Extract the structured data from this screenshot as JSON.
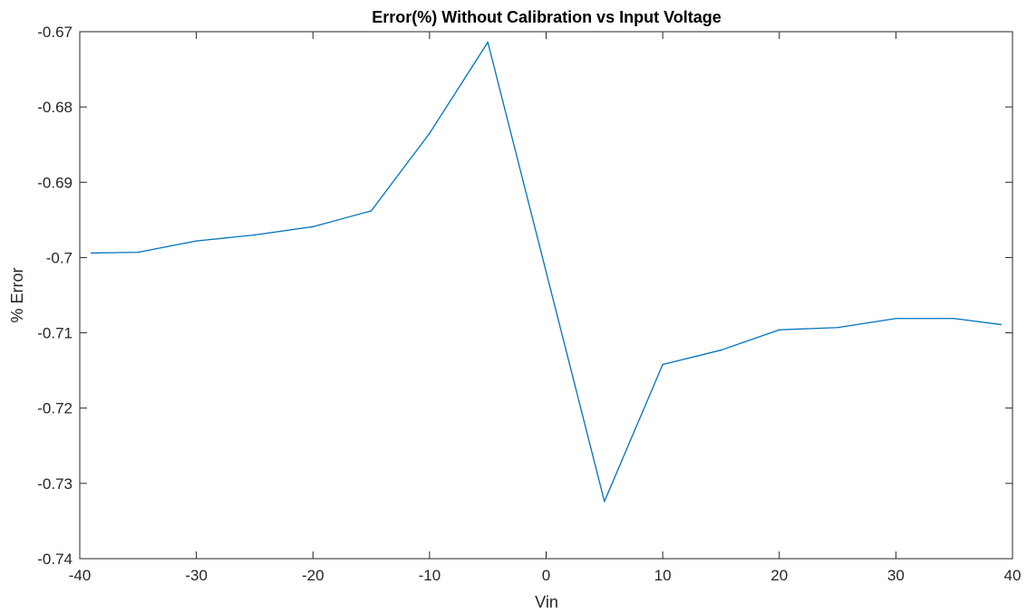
{
  "chart_data": {
    "type": "line",
    "title": "Error(%) Without Calibration vs Input Voltage",
    "xlabel": "Vin",
    "ylabel": "% Error",
    "xlim": [
      -40,
      40
    ],
    "ylim": [
      -0.74,
      -0.67
    ],
    "xticks": [
      -40,
      -30,
      -20,
      -10,
      0,
      10,
      20,
      30,
      40
    ],
    "xtick_labels": [
      "-40",
      "-30",
      "-20",
      "-10",
      "0",
      "10",
      "20",
      "30",
      "40"
    ],
    "yticks": [
      -0.74,
      -0.73,
      -0.72,
      -0.71,
      -0.7,
      -0.69,
      -0.68,
      -0.67
    ],
    "ytick_labels": [
      "-0.74",
      "-0.73",
      "-0.72",
      "-0.71",
      "-0.7",
      "-0.69",
      "-0.68",
      "-0.67"
    ],
    "grid": false,
    "line_color": "#0072BD",
    "x": [
      -39,
      -35,
      -30,
      -25,
      -20,
      -15,
      -10,
      -5,
      5,
      10,
      15,
      20,
      25,
      30,
      35,
      39
    ],
    "y": [
      -0.6994,
      -0.6993,
      -0.6978,
      -0.697,
      -0.6959,
      -0.6938,
      -0.6835,
      -0.6714,
      -0.7324,
      -0.7142,
      -0.7123,
      -0.7096,
      -0.7093,
      -0.7081,
      -0.7081,
      -0.7089
    ]
  }
}
